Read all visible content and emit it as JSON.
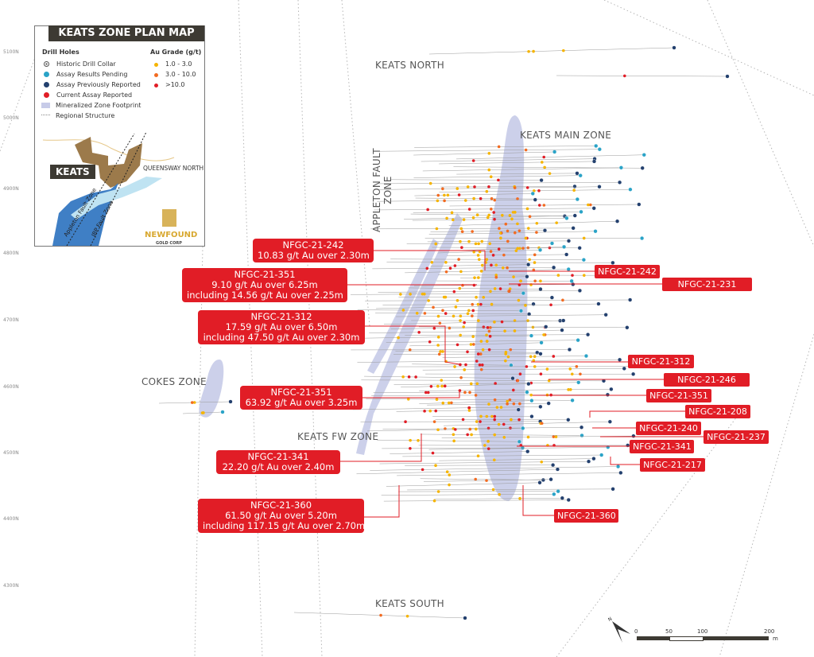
{
  "legend": {
    "title": "KEATS ZONE PLAN MAP",
    "drill_holes_heading": "Drill Holes",
    "drill_holes": [
      {
        "label": "Historic Drill Collar",
        "symbol": "circle-dot-icon",
        "color": "#ffffff"
      },
      {
        "label": "Assay Results Pending",
        "symbol": "dot",
        "color": "#2aa3c7"
      },
      {
        "label": "Assay Previously Reported",
        "symbol": "dot",
        "color": "#23406e"
      },
      {
        "label": "Current Assay Reported",
        "symbol": "dot",
        "color": "#e11d26"
      },
      {
        "label": "Mineralized Zone Footprint",
        "symbol": "rect",
        "color": "#c7cbe8"
      },
      {
        "label": "Regional Structure",
        "symbol": "dotted-line",
        "color": "#999999"
      }
    ],
    "grade_heading": "Au Grade (g/t)",
    "grades": [
      {
        "label": "1.0 - 3.0",
        "color": "#f5b400"
      },
      {
        "label": "3.0 - 10.0",
        "color": "#f26b21"
      },
      {
        "label": ">10.0",
        "color": "#e11d26"
      }
    ],
    "inset": {
      "keats_label": "KEATS",
      "queensway_label": "QUEENSWAY NORTH",
      "appleton_label": "Appleton Fault Zone",
      "jbp_label": "JBP Fault Zone",
      "logo_brand": "NEWFOUND",
      "logo_sub": "GOLD CORP"
    }
  },
  "northings": [
    "5100N",
    "5000N",
    "4900N",
    "4800N",
    "4700N",
    "4600N",
    "4500N",
    "4400N",
    "4300N"
  ],
  "zones": {
    "keats_north": "KEATS NORTH",
    "keats_main": "KEATS MAIN ZONE",
    "appleton": "APPLETON FAULT ZONE",
    "cokes": "COKES ZONE",
    "keats_fw": "KEATS FW ZONE",
    "keats_south": "KEATS SOUTH"
  },
  "callouts_left": [
    {
      "hole": "NFGC-21-242",
      "lines": [
        "10.83 g/t Au over 2.30m"
      ]
    },
    {
      "hole": "NFGC-21-351",
      "lines": [
        "9.10 g/t Au over 6.25m",
        "including 14.56 g/t Au over 2.25m"
      ]
    },
    {
      "hole": "NFGC-21-312",
      "lines": [
        "17.59 g/t Au over 6.50m",
        "including 47.50 g/t Au over 2.30m"
      ]
    },
    {
      "hole": "NFGC-21-351",
      "lines": [
        "63.92 g/t Au over 3.25m"
      ]
    },
    {
      "hole": "NFGC-21-341",
      "lines": [
        "22.20 g/t Au over 2.40m"
      ]
    },
    {
      "hole": "NFGC-21-360",
      "lines": [
        "61.50 g/t Au over 5.20m",
        "including 117.15 g/t Au over 2.70m"
      ]
    }
  ],
  "callouts_right": [
    "NFGC-21-242",
    "NFGC-21-231",
    "NFGC-21-312",
    "NFGC-21-246",
    "NFGC-21-351",
    "NFGC-21-208",
    "NFGC-21-240",
    "NFGC-21-237",
    "NFGC-21-341",
    "NFGC-21-217",
    "NFGC-21-360"
  ],
  "scale": {
    "ticks": [
      "0",
      "50",
      "100",
      "200"
    ],
    "unit": "m",
    "north": "N"
  }
}
